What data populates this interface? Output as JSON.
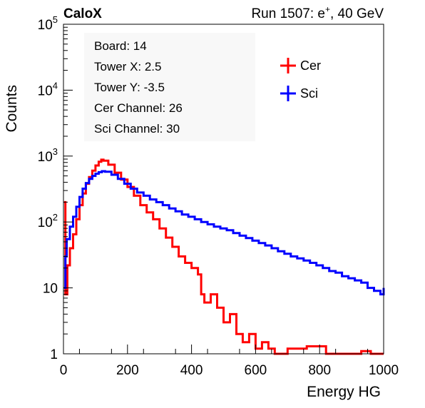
{
  "header": {
    "experiment": "CaloX",
    "run_prefix": "Run 1507: e",
    "run_sup": "+",
    "run_suffix": ", 40 GeV"
  },
  "info": {
    "lines": [
      "Board: 14",
      "Tower X: 2.5",
      "Tower Y: -3.5",
      "Cer Channel: 26",
      "Sci Channel: 30"
    ]
  },
  "colors": {
    "cer": "#ff0000",
    "sci": "#0000ff",
    "axis": "#000000",
    "infobox": "#f8f8f8"
  },
  "chart_data": {
    "type": "line",
    "title": "",
    "xlabel": "Energy HG",
    "ylabel": "Counts",
    "xlim": [
      0,
      1000
    ],
    "ylim": [
      1,
      100000
    ],
    "y_scale": "log",
    "grid": false,
    "legend_position": "top-right",
    "x_ticks": [
      {
        "value": 0,
        "label": "0"
      },
      {
        "value": 200,
        "label": "200"
      },
      {
        "value": 400,
        "label": "400"
      },
      {
        "value": 600,
        "label": "600"
      },
      {
        "value": 800,
        "label": "800"
      },
      {
        "value": 1000,
        "label": "1000"
      }
    ],
    "y_ticks": [
      {
        "value": 1,
        "base": "1",
        "exp": ""
      },
      {
        "value": 10,
        "base": "10",
        "exp": ""
      },
      {
        "value": 100,
        "base": "10",
        "exp": "2"
      },
      {
        "value": 1000,
        "base": "10",
        "exp": "3"
      },
      {
        "value": 10000,
        "base": "10",
        "exp": "4"
      },
      {
        "value": 100000,
        "base": "10",
        "exp": "5"
      }
    ],
    "series": [
      {
        "name": "Cer",
        "color": "#ff0000",
        "points": [
          [
            2,
            200
          ],
          [
            6,
            8
          ],
          [
            12,
            22
          ],
          [
            20,
            40
          ],
          [
            30,
            65
          ],
          [
            40,
            110
          ],
          [
            50,
            180
          ],
          [
            60,
            270
          ],
          [
            70,
            380
          ],
          [
            80,
            480
          ],
          [
            90,
            600
          ],
          [
            100,
            720
          ],
          [
            110,
            820
          ],
          [
            118,
            880
          ],
          [
            125,
            850
          ],
          [
            140,
            740
          ],
          [
            160,
            560
          ],
          [
            180,
            440
          ],
          [
            200,
            340
          ],
          [
            220,
            250
          ],
          [
            240,
            180
          ],
          [
            260,
            140
          ],
          [
            280,
            110
          ],
          [
            300,
            80
          ],
          [
            320,
            58
          ],
          [
            340,
            42
          ],
          [
            360,
            30
          ],
          [
            380,
            24
          ],
          [
            400,
            20
          ],
          [
            420,
            16
          ],
          [
            430,
            8
          ],
          [
            440,
            6
          ],
          [
            460,
            8
          ],
          [
            480,
            5
          ],
          [
            500,
            3
          ],
          [
            520,
            4
          ],
          [
            540,
            2
          ],
          [
            560,
            1.5
          ],
          [
            580,
            2
          ],
          [
            600,
            1.2
          ],
          [
            620,
            1.5
          ],
          [
            640,
            1.2
          ],
          [
            660,
            1
          ],
          [
            700,
            1.2
          ],
          [
            760,
            1.3
          ],
          [
            820,
            1
          ],
          [
            880,
            1
          ],
          [
            930,
            1.1
          ],
          [
            960,
            1
          ],
          [
            1000,
            1
          ]
        ]
      },
      {
        "name": "Sci",
        "color": "#0000ff",
        "points": [
          [
            2,
            10
          ],
          [
            6,
            30
          ],
          [
            10,
            55
          ],
          [
            20,
            85
          ],
          [
            30,
            120
          ],
          [
            40,
            170
          ],
          [
            50,
            240
          ],
          [
            60,
            320
          ],
          [
            70,
            390
          ],
          [
            80,
            450
          ],
          [
            90,
            500
          ],
          [
            100,
            540
          ],
          [
            110,
            570
          ],
          [
            120,
            590
          ],
          [
            130,
            580
          ],
          [
            150,
            520
          ],
          [
            170,
            450
          ],
          [
            190,
            380
          ],
          [
            210,
            320
          ],
          [
            230,
            280
          ],
          [
            250,
            250
          ],
          [
            270,
            220
          ],
          [
            290,
            200
          ],
          [
            310,
            180
          ],
          [
            330,
            160
          ],
          [
            350,
            145
          ],
          [
            370,
            130
          ],
          [
            390,
            120
          ],
          [
            410,
            110
          ],
          [
            430,
            100
          ],
          [
            450,
            92
          ],
          [
            470,
            85
          ],
          [
            490,
            80
          ],
          [
            510,
            75
          ],
          [
            530,
            68
          ],
          [
            550,
            62
          ],
          [
            570,
            57
          ],
          [
            590,
            52
          ],
          [
            610,
            48
          ],
          [
            630,
            44
          ],
          [
            650,
            40
          ],
          [
            670,
            36
          ],
          [
            690,
            33
          ],
          [
            710,
            30
          ],
          [
            730,
            28
          ],
          [
            750,
            26
          ],
          [
            770,
            24
          ],
          [
            790,
            22
          ],
          [
            810,
            20
          ],
          [
            830,
            18
          ],
          [
            850,
            17
          ],
          [
            870,
            15
          ],
          [
            890,
            14
          ],
          [
            910,
            13
          ],
          [
            930,
            12
          ],
          [
            950,
            10
          ],
          [
            970,
            9
          ],
          [
            990,
            8
          ],
          [
            1000,
            10
          ]
        ]
      }
    ]
  }
}
